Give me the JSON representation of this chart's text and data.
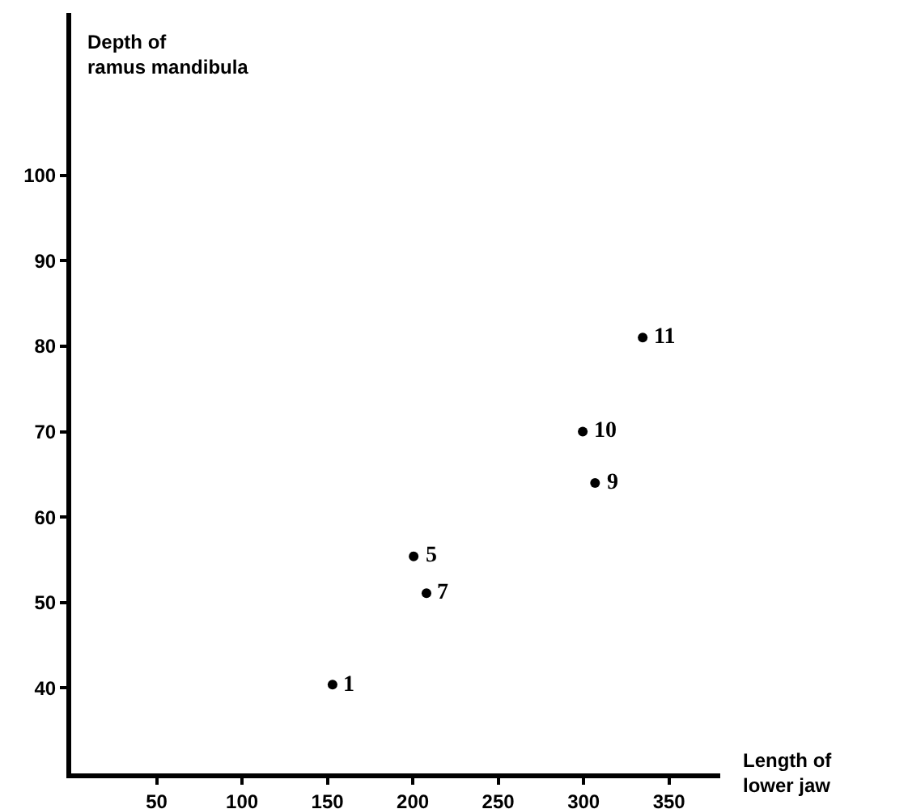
{
  "chart_data": {
    "type": "scatter",
    "xlabel": "Length of\nlower jaw",
    "ylabel": "Depth of\nramus mandibula",
    "x": [
      153,
      200.5,
      208,
      299.5,
      306.7,
      334.6
    ],
    "values": [
      40.4,
      55.4,
      51.1,
      70,
      64,
      81
    ],
    "color": "#000000",
    "marker": "circle",
    "grid": false,
    "legend": false,
    "xlim": [
      0,
      380
    ],
    "xticks": [
      50,
      100,
      150,
      200,
      250,
      300,
      350
    ],
    "ylim": [
      30,
      119
    ],
    "yticks": [
      40,
      50,
      60,
      70,
      80,
      90,
      100
    ],
    "annotations": [
      {
        "text": "1",
        "x": 153,
        "y": 40.4
      },
      {
        "text": "5",
        "x": 200.5,
        "y": 55.4
      },
      {
        "text": "7",
        "x": 208,
        "y": 51.1
      },
      {
        "text": "10",
        "x": 299.5,
        "y": 70
      },
      {
        "text": "9",
        "x": 306.7,
        "y": 64
      },
      {
        "text": "11",
        "x": 334.6,
        "y": 81
      }
    ]
  }
}
